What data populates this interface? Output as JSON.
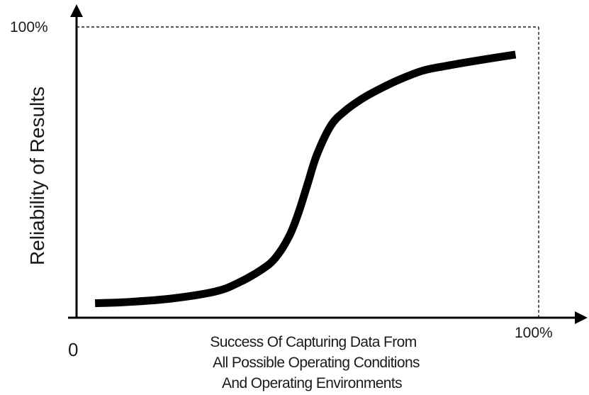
{
  "chart_data": {
    "type": "line",
    "title": "",
    "ylabel": "Reliability of Results",
    "xlabel_lines": [
      "Success Of Capturing Data From",
      "All Possible Operating Conditions",
      "And Operating Environments"
    ],
    "origin_label": "0",
    "x_max_label": "100%",
    "y_max_label": "100%",
    "xlim": [
      0,
      100
    ],
    "ylim": [
      0,
      100
    ],
    "grid": false,
    "legend": "none",
    "reference_lines": [
      "x = 100%",
      "y = 100%"
    ],
    "series": [
      {
        "color": "#000000",
        "x": [
          4,
          10,
          20,
          30,
          35,
          40,
          43,
          46,
          48,
          50,
          52,
          55,
          58,
          62,
          66,
          70,
          75,
          80,
          85,
          90,
          95
        ],
        "y": [
          5,
          5.3,
          6.5,
          9,
          12,
          16.5,
          20.5,
          28,
          36,
          46,
          56,
          66,
          71,
          75.5,
          79,
          82,
          85,
          86.6,
          88,
          89.3,
          90.5
        ]
      }
    ]
  }
}
